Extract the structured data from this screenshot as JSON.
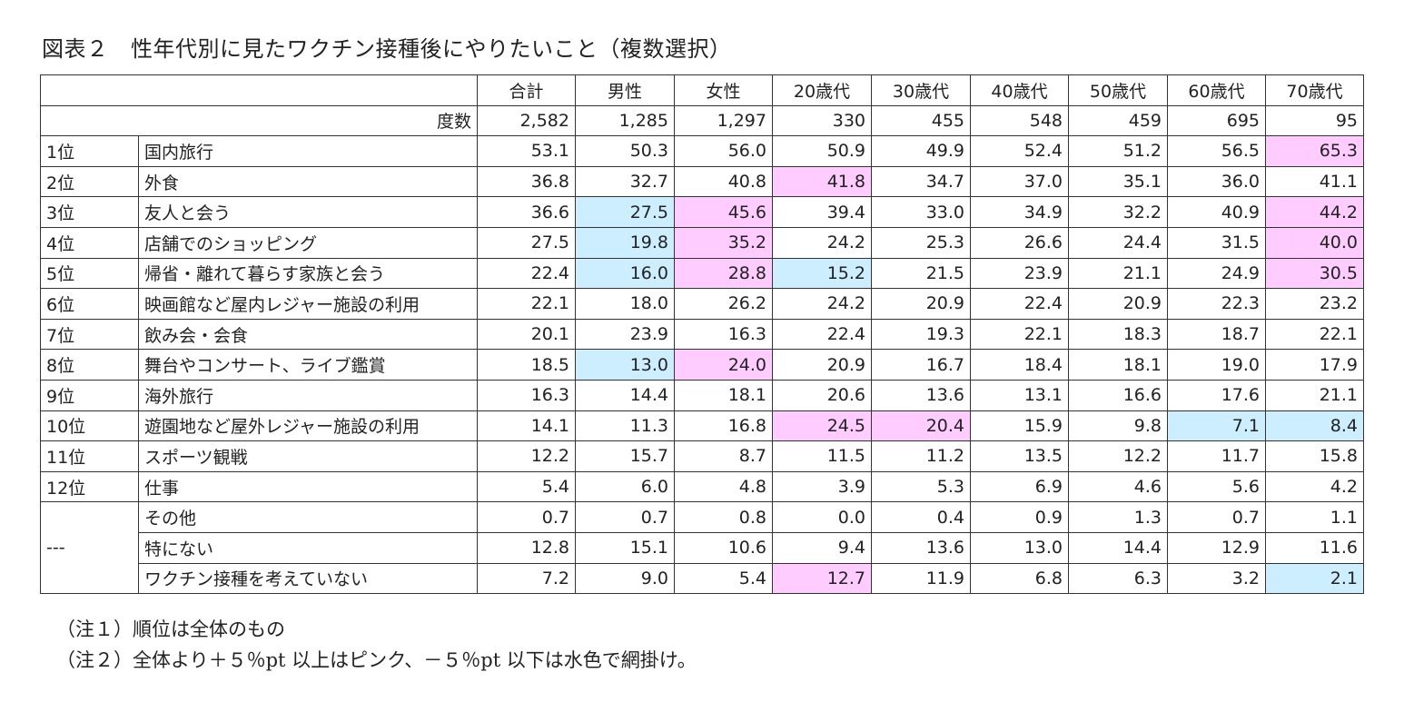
{
  "title": "図表２　性年代別に見たワクチン接種後にやりたいこと（複数選択）",
  "columns": [
    "合計",
    "男性",
    "女性",
    "20歳代",
    "30歳代",
    "40歳代",
    "50歳代",
    "60歳代",
    "70歳代"
  ],
  "count_label": "度数",
  "counts": [
    "2,582",
    "1,285",
    "1,297",
    "330",
    "455",
    "548",
    "459",
    "695",
    "95"
  ],
  "rows": [
    {
      "rank": "1位",
      "label": "国内旅行",
      "values": [
        "53.1",
        "50.3",
        "56.0",
        "50.9",
        "49.9",
        "52.4",
        "51.2",
        "56.5",
        "65.3"
      ],
      "marks": [
        "",
        "",
        "",
        "",
        "",
        "",
        "",
        "",
        "p"
      ]
    },
    {
      "rank": "2位",
      "label": "外食",
      "values": [
        "36.8",
        "32.7",
        "40.8",
        "41.8",
        "34.7",
        "37.0",
        "35.1",
        "36.0",
        "41.1"
      ],
      "marks": [
        "",
        "",
        "",
        "p",
        "",
        "",
        "",
        "",
        ""
      ]
    },
    {
      "rank": "3位",
      "label": "友人と会う",
      "values": [
        "36.6",
        "27.5",
        "45.6",
        "39.4",
        "33.0",
        "34.9",
        "32.2",
        "40.9",
        "44.2"
      ],
      "marks": [
        "",
        "b",
        "p",
        "",
        "",
        "",
        "",
        "",
        "p"
      ]
    },
    {
      "rank": "4位",
      "label": "店舗でのショッピング",
      "values": [
        "27.5",
        "19.8",
        "35.2",
        "24.2",
        "25.3",
        "26.6",
        "24.4",
        "31.5",
        "40.0"
      ],
      "marks": [
        "",
        "b",
        "p",
        "",
        "",
        "",
        "",
        "",
        "p"
      ]
    },
    {
      "rank": "5位",
      "label": "帰省・離れて暮らす家族と会う",
      "values": [
        "22.4",
        "16.0",
        "28.8",
        "15.2",
        "21.5",
        "23.9",
        "21.1",
        "24.9",
        "30.5"
      ],
      "marks": [
        "",
        "b",
        "p",
        "b",
        "",
        "",
        "",
        "",
        "p"
      ]
    },
    {
      "rank": "6位",
      "label": "映画館など屋内レジャー施設の利用",
      "values": [
        "22.1",
        "18.0",
        "26.2",
        "24.2",
        "20.9",
        "22.4",
        "20.9",
        "22.3",
        "23.2"
      ],
      "marks": [
        "",
        "",
        "",
        "",
        "",
        "",
        "",
        "",
        ""
      ]
    },
    {
      "rank": "7位",
      "label": "飲み会・会食",
      "values": [
        "20.1",
        "23.9",
        "16.3",
        "22.4",
        "19.3",
        "22.1",
        "18.3",
        "18.7",
        "22.1"
      ],
      "marks": [
        "",
        "",
        "",
        "",
        "",
        "",
        "",
        "",
        ""
      ]
    },
    {
      "rank": "8位",
      "label": "舞台やコンサート、ライブ鑑賞",
      "values": [
        "18.5",
        "13.0",
        "24.0",
        "20.9",
        "16.7",
        "18.4",
        "18.1",
        "19.0",
        "17.9"
      ],
      "marks": [
        "",
        "b",
        "p",
        "",
        "",
        "",
        "",
        "",
        ""
      ]
    },
    {
      "rank": "9位",
      "label": "海外旅行",
      "values": [
        "16.3",
        "14.4",
        "18.1",
        "20.6",
        "13.6",
        "13.1",
        "16.6",
        "17.6",
        "21.1"
      ],
      "marks": [
        "",
        "",
        "",
        "",
        "",
        "",
        "",
        "",
        ""
      ]
    },
    {
      "rank": "10位",
      "label": "遊園地など屋外レジャー施設の利用",
      "values": [
        "14.1",
        "11.3",
        "16.8",
        "24.5",
        "20.4",
        "15.9",
        "9.8",
        "7.1",
        "8.4"
      ],
      "marks": [
        "",
        "",
        "",
        "p",
        "p",
        "",
        "",
        "b",
        "b"
      ]
    },
    {
      "rank": "11位",
      "label": "スポーツ観戦",
      "values": [
        "12.2",
        "15.7",
        "8.7",
        "11.5",
        "11.2",
        "13.5",
        "12.2",
        "11.7",
        "15.8"
      ],
      "marks": [
        "",
        "",
        "",
        "",
        "",
        "",
        "",
        "",
        ""
      ]
    },
    {
      "rank": "12位",
      "label": "仕事",
      "values": [
        "5.4",
        "6.0",
        "4.8",
        "3.9",
        "5.3",
        "6.9",
        "4.6",
        "5.6",
        "4.2"
      ],
      "marks": [
        "",
        "",
        "",
        "",
        "",
        "",
        "",
        "",
        ""
      ]
    }
  ],
  "other_rank": "---",
  "other_rows": [
    {
      "label": "その他",
      "values": [
        "0.7",
        "0.7",
        "0.8",
        "0.0",
        "0.4",
        "0.9",
        "1.3",
        "0.7",
        "1.1"
      ],
      "marks": [
        "",
        "",
        "",
        "",
        "",
        "",
        "",
        "",
        ""
      ]
    },
    {
      "label": "特にない",
      "values": [
        "12.8",
        "15.1",
        "10.6",
        "9.4",
        "13.6",
        "13.0",
        "14.4",
        "12.9",
        "11.6"
      ],
      "marks": [
        "",
        "",
        "",
        "",
        "",
        "",
        "",
        "",
        ""
      ]
    },
    {
      "label": "ワクチン接種を考えていない",
      "values": [
        "7.2",
        "9.0",
        "5.4",
        "12.7",
        "11.9",
        "6.8",
        "6.3",
        "3.2",
        "2.1"
      ],
      "marks": [
        "",
        "",
        "",
        "p",
        "",
        "",
        "",
        "",
        "b"
      ]
    }
  ],
  "notes": [
    "（注１）順位は全体のもの",
    "（注２）全体より＋５％pt 以上はピンク、－５％pt 以下は水色で網掛け。"
  ],
  "colors": {
    "pink": "#ffccff",
    "blue": "#cceeff"
  }
}
